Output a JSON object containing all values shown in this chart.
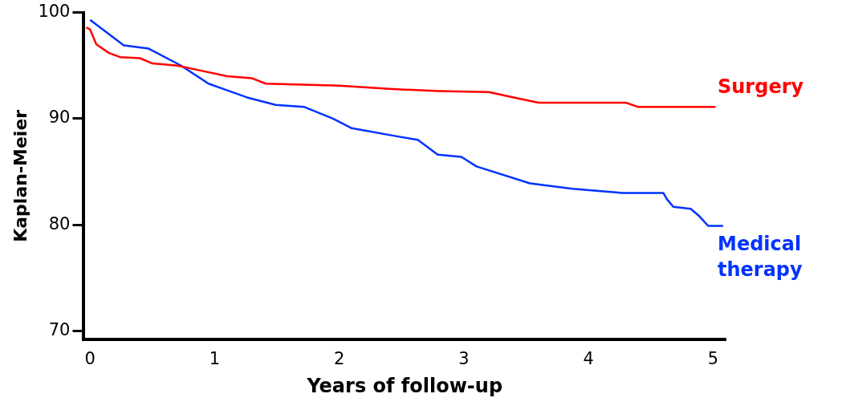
{
  "chart_data": {
    "type": "line",
    "xlabel": "Years of follow-up",
    "ylabel": "Kaplan-Meier",
    "xlim": [
      -0.05,
      5.1
    ],
    "xticks": [
      0,
      1,
      2,
      3,
      4,
      5
    ],
    "ylim": [
      69.2,
      100
    ],
    "yticks": [
      70,
      80,
      90,
      100
    ],
    "grid": false,
    "legend": false,
    "marker": "none",
    "line_style": "solid",
    "series": [
      {
        "name": "Surgery",
        "color": "#ff0000",
        "x": [
          -0.03,
          0,
          0.05,
          0.15,
          0.24,
          0.4,
          0.5,
          0.7,
          0.9,
          1.1,
          1.3,
          1.41,
          2.0,
          2.4,
          2.8,
          3.2,
          3.4,
          3.6,
          4.3,
          4.4,
          5.02
        ],
        "values": [
          98.6,
          98.4,
          97,
          96.2,
          95.8,
          95.7,
          95.2,
          95,
          94.5,
          94,
          93.8,
          93.3,
          93.1,
          92.8,
          92.6,
          92.5,
          92,
          91.5,
          91.5,
          91.1,
          91.1
        ]
      },
      {
        "name": "Medical therapy",
        "color": "#0033ff",
        "x": [
          0,
          0.27,
          0.47,
          0.73,
          0.95,
          1.07,
          1.26,
          1.49,
          1.72,
          1.95,
          2.1,
          2.48,
          2.63,
          2.79,
          2.98,
          3.1,
          3.53,
          3.87,
          4.27,
          4.6,
          4.63,
          4.68,
          4.82,
          4.89,
          4.96,
          5.08
        ],
        "values": [
          99.3,
          96.9,
          96.6,
          95,
          93.3,
          92.8,
          92,
          91.3,
          91.1,
          90,
          89.1,
          88.3,
          88,
          86.6,
          86.4,
          85.5,
          83.9,
          83.4,
          83,
          83,
          82.4,
          81.7,
          81.5,
          80.8,
          79.9,
          79.9
        ]
      }
    ]
  }
}
